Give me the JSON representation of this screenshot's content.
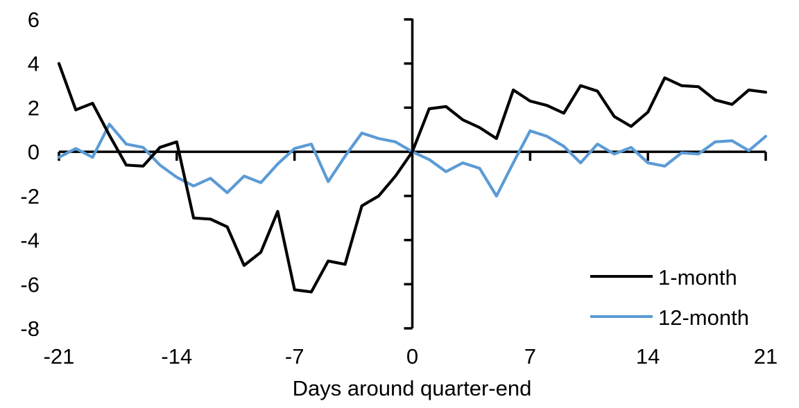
{
  "chart_data": {
    "type": "line",
    "title": "",
    "xlabel": "Days around quarter-end",
    "ylabel": "",
    "x": [
      -21,
      -20,
      -19,
      -18,
      -17,
      -16,
      -15,
      -14,
      -13,
      -12,
      -11,
      -10,
      -9,
      -8,
      -7,
      -6,
      -5,
      -4,
      -3,
      -2,
      -1,
      0,
      1,
      2,
      3,
      4,
      5,
      6,
      7,
      8,
      9,
      10,
      11,
      12,
      13,
      14,
      15,
      16,
      17,
      18,
      19,
      20,
      21
    ],
    "series": [
      {
        "name": "1-month",
        "color": "#000000",
        "values": [
          4.0,
          1.9,
          2.2,
          0.75,
          -0.6,
          -0.65,
          0.2,
          0.45,
          -3.0,
          -3.05,
          -3.4,
          -5.15,
          -4.55,
          -2.7,
          -6.25,
          -6.35,
          -4.95,
          -5.1,
          -2.45,
          -2.0,
          -1.1,
          0.0,
          1.95,
          2.05,
          1.45,
          1.1,
          0.6,
          2.8,
          2.3,
          2.1,
          1.75,
          3.0,
          2.75,
          1.6,
          1.15,
          1.8,
          3.35,
          3.0,
          2.95,
          2.35,
          2.15,
          2.8,
          2.7
        ]
      },
      {
        "name": "12-month",
        "color": "#5B9BD5",
        "values": [
          -0.25,
          0.15,
          -0.25,
          1.25,
          0.35,
          0.2,
          -0.6,
          -1.15,
          -1.55,
          -1.2,
          -1.85,
          -1.1,
          -1.4,
          -0.55,
          0.15,
          0.35,
          -1.35,
          -0.2,
          0.85,
          0.6,
          0.45,
          0.0,
          -0.35,
          -0.9,
          -0.5,
          -0.75,
          -2.0,
          -0.5,
          0.95,
          0.7,
          0.25,
          -0.5,
          0.35,
          -0.1,
          0.2,
          -0.5,
          -0.65,
          -0.05,
          -0.1,
          0.45,
          0.5,
          0.05,
          0.7
        ]
      }
    ],
    "xlim": [
      -21,
      21
    ],
    "ylim": [
      -8,
      6
    ],
    "x_ticks": [
      -21,
      -14,
      -7,
      0,
      7,
      14,
      21
    ],
    "y_ticks": [
      6,
      4,
      2,
      0,
      -2,
      -4,
      -6,
      -8
    ],
    "grid": false,
    "legend_position": "bottom-right",
    "axis_color": "#000000"
  }
}
